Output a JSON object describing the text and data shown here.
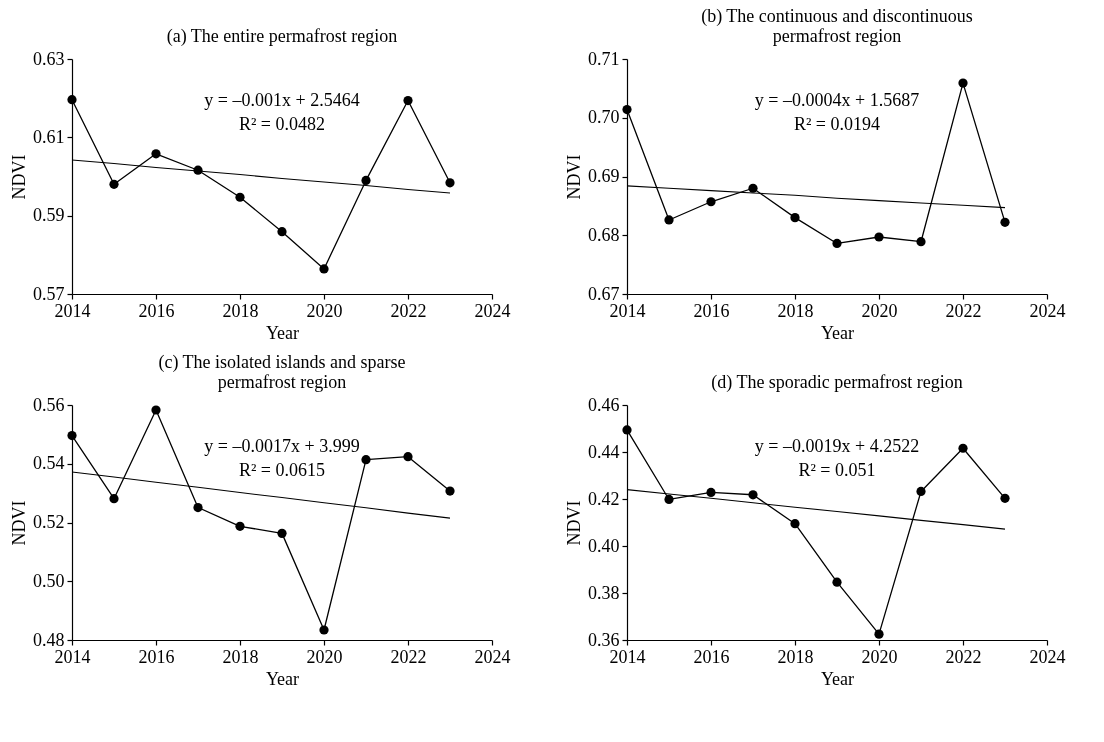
{
  "chart_data": [
    {
      "type": "line",
      "title": "(a) The entire permafrost region",
      "xlabel": "Year",
      "ylabel": "NDVI",
      "x": [
        2014,
        2015,
        2016,
        2017,
        2018,
        2019,
        2020,
        2021,
        2022,
        2023
      ],
      "xlim": [
        2014,
        2024
      ],
      "xticks": [
        2014,
        2016,
        2018,
        2020,
        2022,
        2024
      ],
      "ylim": [
        0.57,
        0.63
      ],
      "yticks": [
        0.57,
        0.59,
        0.61,
        0.63
      ],
      "marker": "circle",
      "line_style": "solid",
      "annotations": [
        "y = –0.001x + 2.5464",
        "R² = 0.0482"
      ],
      "series": [
        {
          "color": "#000000",
          "values": [
            0.6196,
            0.598,
            0.6058,
            0.6016,
            0.5947,
            0.5859,
            0.5764,
            0.599,
            0.6194,
            0.5984
          ]
        },
        {
          "type": "line",
          "marker": "none",
          "color": "#000000",
          "values": [
            0.6042,
            0.6033,
            0.6023,
            0.6014,
            0.6005,
            0.5995,
            0.5986,
            0.5977,
            0.5967,
            0.5958
          ]
        }
      ]
    },
    {
      "type": "line",
      "title": "(b) The continuous and discontinuous permafrost region",
      "xlabel": "Year",
      "ylabel": "NDVI",
      "x": [
        2014,
        2015,
        2016,
        2017,
        2018,
        2019,
        2020,
        2021,
        2022,
        2023
      ],
      "xlim": [
        2014,
        2024
      ],
      "xticks": [
        2014,
        2016,
        2018,
        2020,
        2022,
        2024
      ],
      "ylim": [
        0.67,
        0.71
      ],
      "yticks": [
        0.67,
        0.68,
        0.69,
        {
          "value": 0.7,
          "label": "0.70"
        },
        0.71
      ],
      "marker": "circle",
      "line_style": "solid",
      "annotations": [
        "y = –0.0004x + 1.5687",
        "R² = 0.0194"
      ],
      "series": [
        {
          "color": "#000000",
          "values": [
            0.7014,
            0.6826,
            0.6857,
            0.688,
            0.683,
            0.6786,
            0.6797,
            0.6789,
            0.7059,
            0.6822
          ]
        },
        {
          "type": "line",
          "marker": "none",
          "color": "#000000",
          "values": [
            0.6884,
            0.688,
            0.6876,
            0.6872,
            0.6868,
            0.6863,
            0.6859,
            0.6855,
            0.6851,
            0.6847
          ]
        }
      ]
    },
    {
      "type": "line",
      "title": "(c) The isolated islands and sparse permafrost region",
      "xlabel": "Year",
      "ylabel": "NDVI",
      "x": [
        2014,
        2015,
        2016,
        2017,
        2018,
        2019,
        2020,
        2021,
        2022,
        2023
      ],
      "xlim": [
        2014,
        2024
      ],
      "xticks": [
        2014,
        2016,
        2018,
        2020,
        2022,
        2024
      ],
      "ylim": [
        0.48,
        0.56
      ],
      "yticks": [
        0.48,
        {
          "value": 0.5,
          "label": "0.50"
        },
        0.52,
        0.54,
        0.56
      ],
      "marker": "circle",
      "line_style": "solid",
      "annotations": [
        "y = –0.0017x + 3.999",
        "R² = 0.0615"
      ],
      "series": [
        {
          "color": "#000000",
          "values": [
            0.5496,
            0.5281,
            0.5583,
            0.5251,
            0.5187,
            0.5163,
            0.4834,
            0.5414,
            0.5424,
            0.5307
          ]
        },
        {
          "type": "line",
          "marker": "none",
          "color": "#000000",
          "values": [
            0.5372,
            0.5355,
            0.5337,
            0.532,
            0.5302,
            0.5285,
            0.5267,
            0.525,
            0.5232,
            0.5215
          ]
        }
      ]
    },
    {
      "type": "line",
      "title": "(d) The sporadic permafrost region",
      "xlabel": "Year",
      "ylabel": "NDVI",
      "x": [
        2014,
        2015,
        2016,
        2017,
        2018,
        2019,
        2020,
        2021,
        2022,
        2023
      ],
      "xlim": [
        2014,
        2024
      ],
      "xticks": [
        2014,
        2016,
        2018,
        2020,
        2022,
        2024
      ],
      "ylim": [
        0.36,
        0.46
      ],
      "yticks": [
        0.36,
        0.38,
        {
          "value": 0.4,
          "label": "0.40"
        },
        0.42,
        0.44,
        0.46
      ],
      "marker": "circle",
      "line_style": "solid",
      "annotations": [
        "y = –0.0019x + 4.2522",
        "R² = 0.051"
      ],
      "series": [
        {
          "color": "#000000",
          "values": [
            0.4494,
            0.4198,
            0.4228,
            0.4218,
            0.4095,
            0.3846,
            0.3625,
            0.4232,
            0.4416,
            0.4203
          ]
        },
        {
          "type": "line",
          "marker": "none",
          "color": "#000000",
          "values": [
            0.424,
            0.4221,
            0.4203,
            0.4184,
            0.4165,
            0.4147,
            0.4128,
            0.4109,
            0.4091,
            0.4072
          ]
        }
      ]
    }
  ]
}
